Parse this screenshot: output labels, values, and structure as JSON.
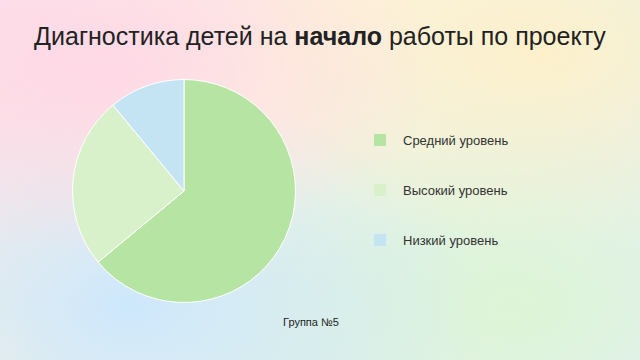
{
  "chart_data": {
    "type": "pie",
    "title": "Диагностика детей на начало работы по проекту",
    "categories": [
      "Средний уровень",
      "Высокий уровень",
      "Низкий уровень"
    ],
    "values": [
      64,
      25,
      11
    ],
    "colors": [
      "#b6e4a3",
      "#d8f1cb",
      "#c4e4f4"
    ],
    "legend": "right",
    "annotation": "Группа №5"
  }
}
